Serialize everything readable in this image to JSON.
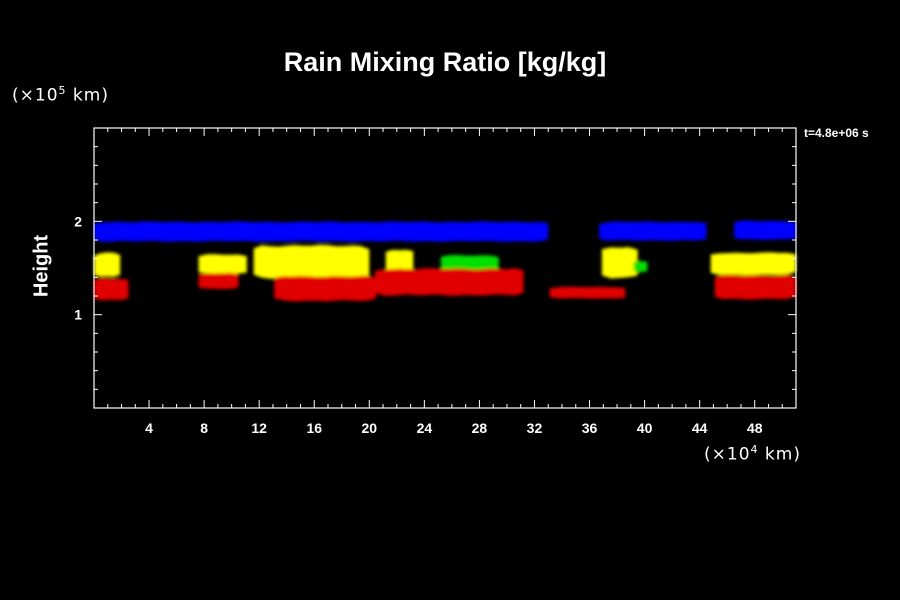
{
  "chart_data": {
    "type": "heatmap",
    "title": "Rain Mixing Ratio [kg/kg]",
    "ylabel": "Height",
    "y_unit": {
      "prefix": "(×10",
      "exp": "5",
      "suffix": " km)"
    },
    "x_unit": {
      "prefix": "(×10",
      "exp": "4",
      "suffix": " km)"
    },
    "time_label": "t=4.8e+06 s",
    "xlim": [
      0,
      51
    ],
    "ylim": [
      0,
      3
    ],
    "x_ticks": [
      4,
      8,
      12,
      16,
      20,
      24,
      28,
      32,
      36,
      40,
      44,
      48
    ],
    "y_ticks": [
      1,
      2
    ],
    "series": [
      {
        "color": "#0000ff",
        "bands": [
          {
            "x0": 0,
            "x1": 33.0,
            "ymin": 1.78,
            "ymax": 2.0
          },
          {
            "x0": 36.7,
            "x1": 44.5,
            "ymin": 1.79,
            "ymax": 2.0
          },
          {
            "x0": 46.5,
            "x1": 51,
            "ymin": 1.8,
            "ymax": 2.01
          }
        ]
      },
      {
        "color": "#ffff00",
        "bands": [
          {
            "x0": 0,
            "x1": 1.9,
            "ymin": 1.4,
            "ymax": 1.67
          },
          {
            "x0": 7.6,
            "x1": 11.1,
            "ymin": 1.43,
            "ymax": 1.65
          },
          {
            "x0": 11.6,
            "x1": 20.0,
            "ymin": 1.38,
            "ymax": 1.75
          },
          {
            "x0": 21.2,
            "x1": 23.2,
            "ymin": 1.46,
            "ymax": 1.7
          },
          {
            "x0": 36.9,
            "x1": 39.5,
            "ymin": 1.38,
            "ymax": 1.73
          },
          {
            "x0": 44.8,
            "x1": 51,
            "ymin": 1.42,
            "ymax": 1.67
          }
        ]
      },
      {
        "color": "#00e000",
        "bands": [
          {
            "x0": 25.2,
            "x1": 29.4,
            "ymin": 1.47,
            "ymax": 1.64
          },
          {
            "x0": 39.2,
            "x1": 40.2,
            "ymin": 1.45,
            "ymax": 1.58
          }
        ]
      },
      {
        "color": "#e00000",
        "bands": [
          {
            "x0": 0,
            "x1": 2.5,
            "ymin": 1.15,
            "ymax": 1.4
          },
          {
            "x0": 7.6,
            "x1": 10.5,
            "ymin": 1.27,
            "ymax": 1.45
          },
          {
            "x0": 13.1,
            "x1": 20.5,
            "ymin": 1.14,
            "ymax": 1.42
          },
          {
            "x0": 20.4,
            "x1": 31.2,
            "ymin": 1.2,
            "ymax": 1.5
          },
          {
            "x0": 33.1,
            "x1": 38.6,
            "ymin": 1.17,
            "ymax": 1.3
          },
          {
            "x0": 45.1,
            "x1": 51,
            "ymin": 1.16,
            "ymax": 1.43
          }
        ]
      }
    ]
  }
}
